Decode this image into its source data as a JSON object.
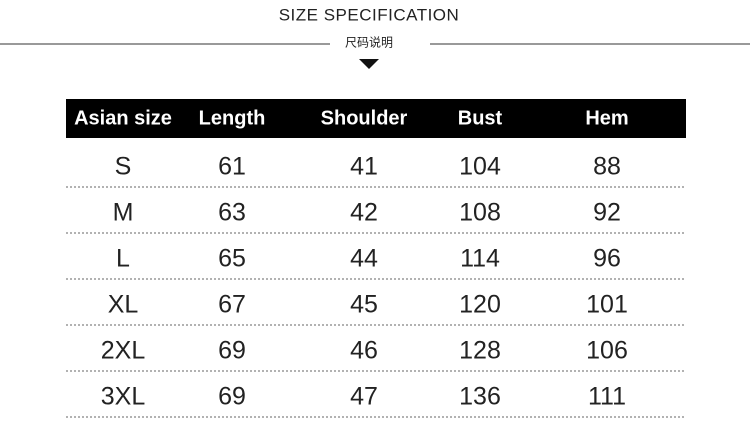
{
  "header": {
    "title": "SIZE SPECIFICATION",
    "subtitle": "尺码说明"
  },
  "table": {
    "columns": [
      "Asian size",
      "Length",
      "Shoulder",
      "Bust",
      "Hem"
    ],
    "rows": [
      [
        "S",
        "61",
        "41",
        "104",
        "88"
      ],
      [
        "M",
        "63",
        "42",
        "108",
        "92"
      ],
      [
        "L",
        "65",
        "44",
        "114",
        "96"
      ],
      [
        "XL",
        "67",
        "45",
        "120",
        "101"
      ],
      [
        "2XL",
        "69",
        "46",
        "128",
        "106"
      ],
      [
        "3XL",
        "69",
        "47",
        "136",
        "111"
      ]
    ]
  }
}
